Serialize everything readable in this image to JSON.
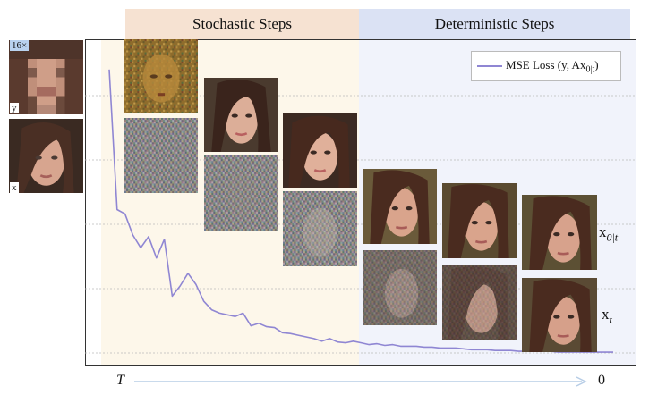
{
  "phases": {
    "stochastic": "Stochastic Steps",
    "deterministic": "Deterministic Steps"
  },
  "inputs": {
    "scale_badge": "16×",
    "y_label": "y",
    "x_label": "x"
  },
  "legend": {
    "label": "MSE Loss (y, Ax",
    "subscript": "0|t",
    "suffix": ")"
  },
  "row_labels": {
    "top": "x",
    "top_sub": "0|t",
    "bottom": "x",
    "bottom_sub": "t"
  },
  "axis": {
    "start": "T",
    "end": "0"
  },
  "colors": {
    "line": "#8f86d3",
    "stochastic_bg": "#fdf7ea",
    "deterministic_bg": "#f1f3fb",
    "stochastic_header": "#f6e2d2",
    "deterministic_header": "#dbe2f4",
    "arrow": "#b7cde6"
  },
  "chart_data": {
    "type": "line",
    "series": [
      {
        "name": "MSE Loss (y, Ax0|t)",
        "values": [
          335,
          170,
          165,
          140,
          125,
          138,
          113,
          135,
          68,
          80,
          95,
          82,
          62,
          52,
          48,
          46,
          44,
          48,
          33,
          36,
          32,
          31,
          25,
          24,
          22,
          20,
          18,
          15,
          18,
          14,
          13,
          15,
          13,
          11,
          12,
          10,
          11,
          9,
          9,
          9,
          8,
          8,
          7,
          7,
          7,
          6,
          5,
          5,
          5,
          4,
          4,
          4,
          3,
          3,
          3,
          3,
          3,
          2,
          2,
          2,
          2,
          2,
          2,
          2,
          2
        ]
      }
    ],
    "ylim": [
      0,
      360
    ],
    "grid": true,
    "legend_position": "top-right"
  }
}
